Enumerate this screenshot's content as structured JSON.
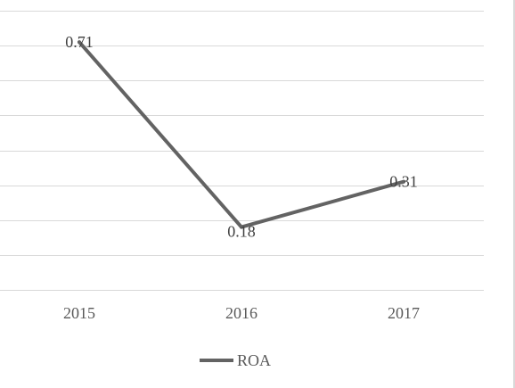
{
  "chart_data": {
    "type": "line",
    "categories": [
      "2015",
      "2016",
      "2017"
    ],
    "series": [
      {
        "name": "ROA",
        "values": [
          0.71,
          0.18,
          0.31
        ],
        "color": "#636363"
      }
    ],
    "data_labels": [
      "0.71",
      "0.18",
      "0.31"
    ],
    "title": "",
    "xlabel": "",
    "ylabel": "",
    "ylim": [
      0.0,
      0.8
    ],
    "grid": true,
    "legend": "bottom"
  }
}
